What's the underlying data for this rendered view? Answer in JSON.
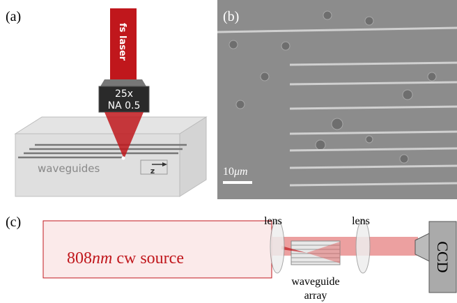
{
  "panels": {
    "a": {
      "label": "(a)",
      "laser": "fs laser",
      "objective_mag": "25x",
      "objective_na": "NA 0.5",
      "waveguides": "waveguides",
      "axis": "z"
    },
    "b": {
      "label": "(b)",
      "scale_number": "10",
      "scale_unit": "μm"
    },
    "c": {
      "label": "(c)",
      "source_number": "808",
      "source_unit": "nm",
      "source_text": " cw source",
      "lens_left": "lens",
      "lens_right": "lens",
      "array_line1": "waveguide",
      "array_line2": "array",
      "detector": "CCD"
    }
  }
}
